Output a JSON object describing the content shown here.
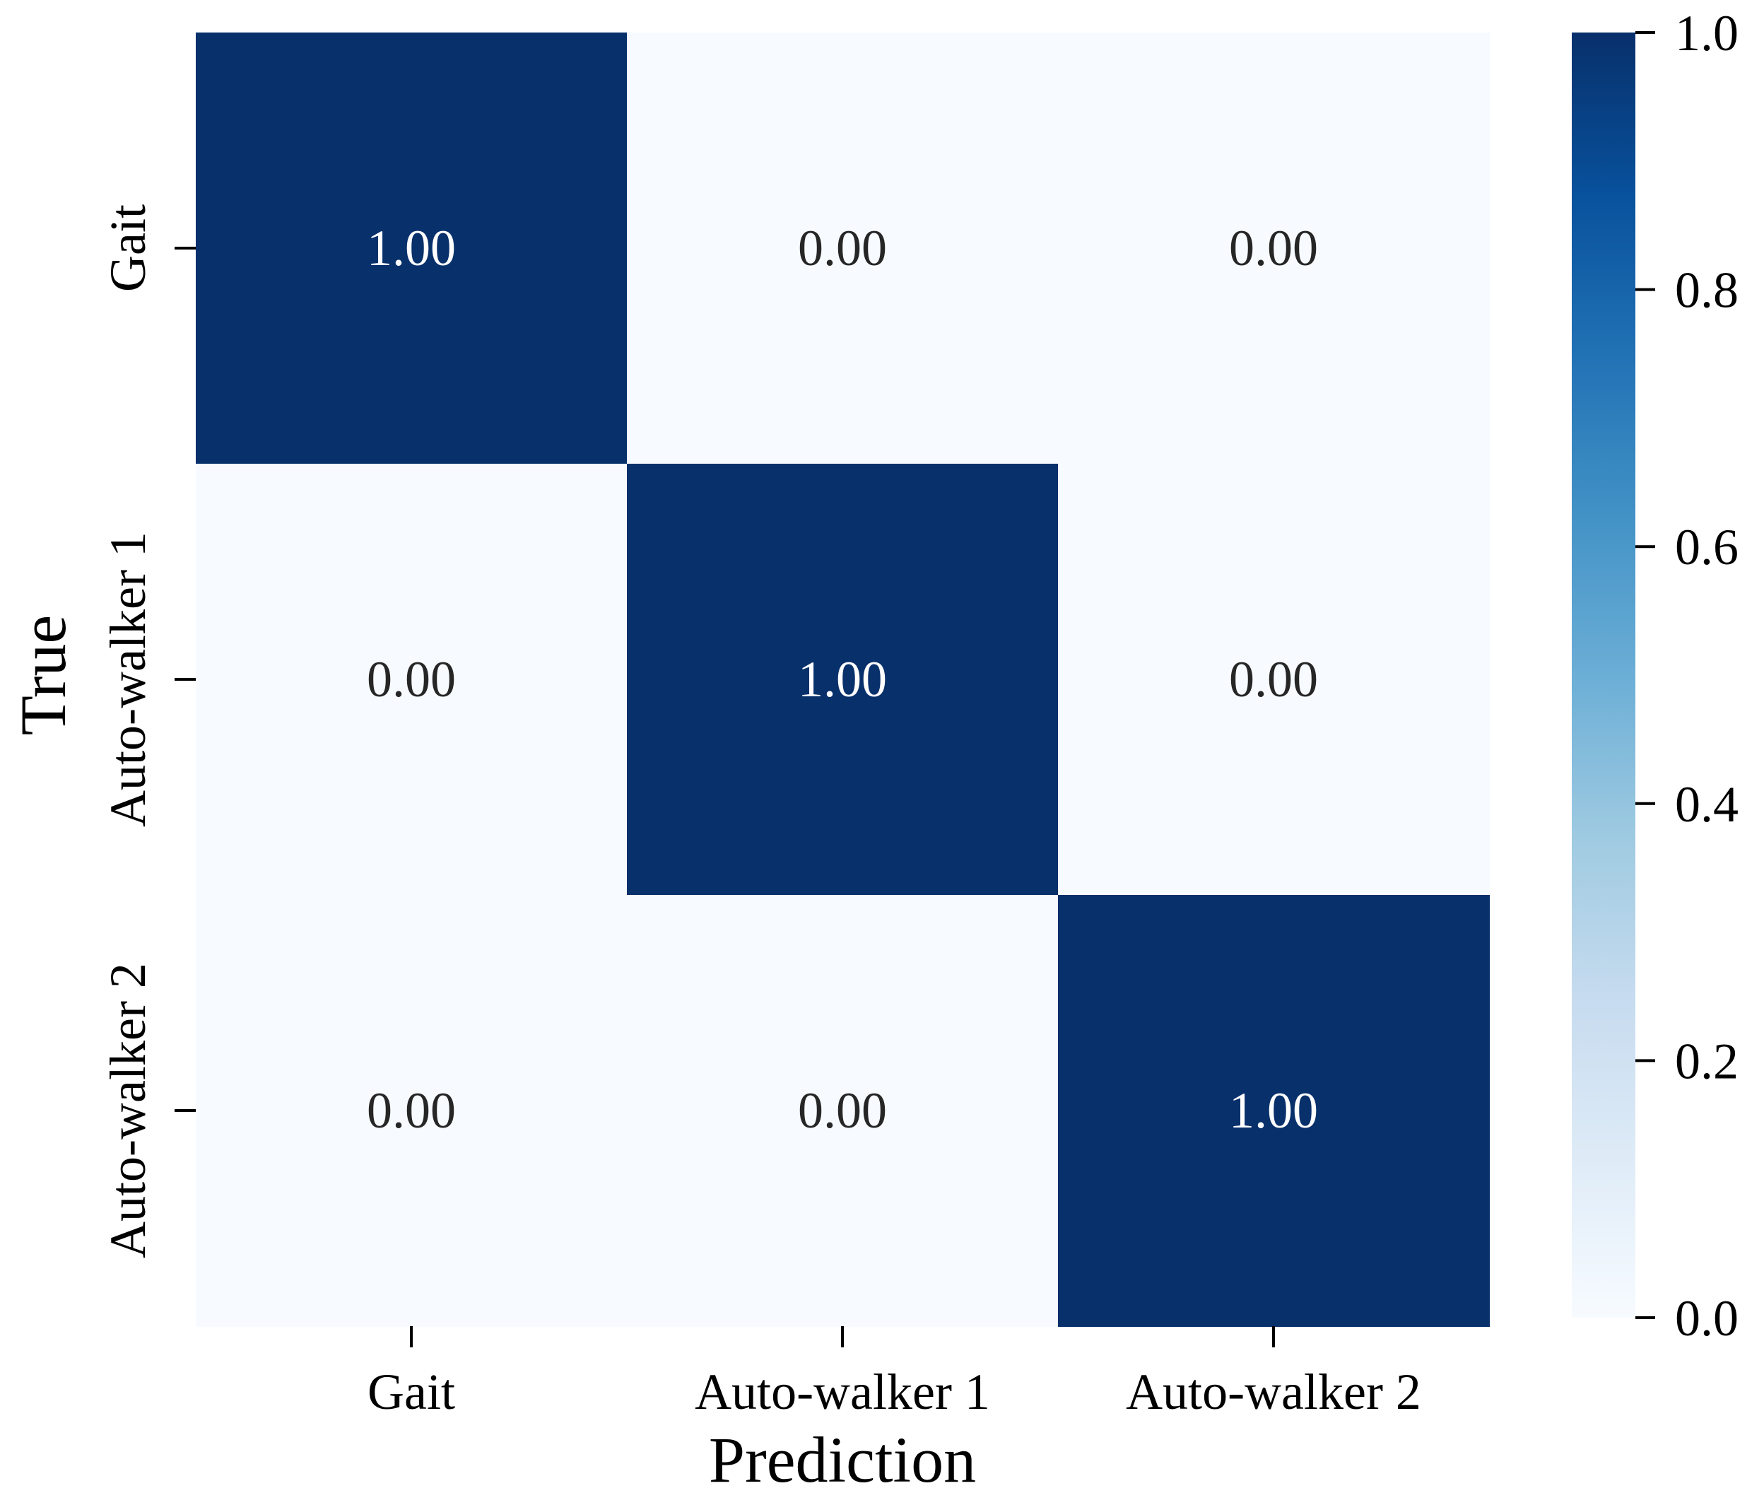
{
  "chart_data": {
    "type": "heatmap",
    "xlabel": "Prediction",
    "ylabel": "True",
    "x_categories": [
      "Gait",
      "Auto-walker 1",
      "Auto-walker 2"
    ],
    "y_categories": [
      "Gait",
      "Auto-walker 1",
      "Auto-walker 2"
    ],
    "values": [
      [
        1.0,
        0.0,
        0.0
      ],
      [
        0.0,
        1.0,
        0.0
      ],
      [
        0.0,
        0.0,
        1.0
      ]
    ],
    "cell_labels": [
      [
        "1.00",
        "0.00",
        "0.00"
      ],
      [
        "0.00",
        "1.00",
        "0.00"
      ],
      [
        "0.00",
        "0.00",
        "1.00"
      ]
    ],
    "colorbar": {
      "range": [
        0.0,
        1.0
      ],
      "ticks": [
        "0.0",
        "0.2",
        "0.4",
        "0.6",
        "0.8",
        "1.0"
      ],
      "tick_values": [
        0.0,
        0.2,
        0.4,
        0.6,
        0.8,
        1.0
      ]
    },
    "colormap": "Blues",
    "colors": {
      "low": "#f7fbff",
      "high": "#08306b",
      "text_on_dark": "#ffffff",
      "text_on_light": "#262626"
    },
    "grid": false
  }
}
